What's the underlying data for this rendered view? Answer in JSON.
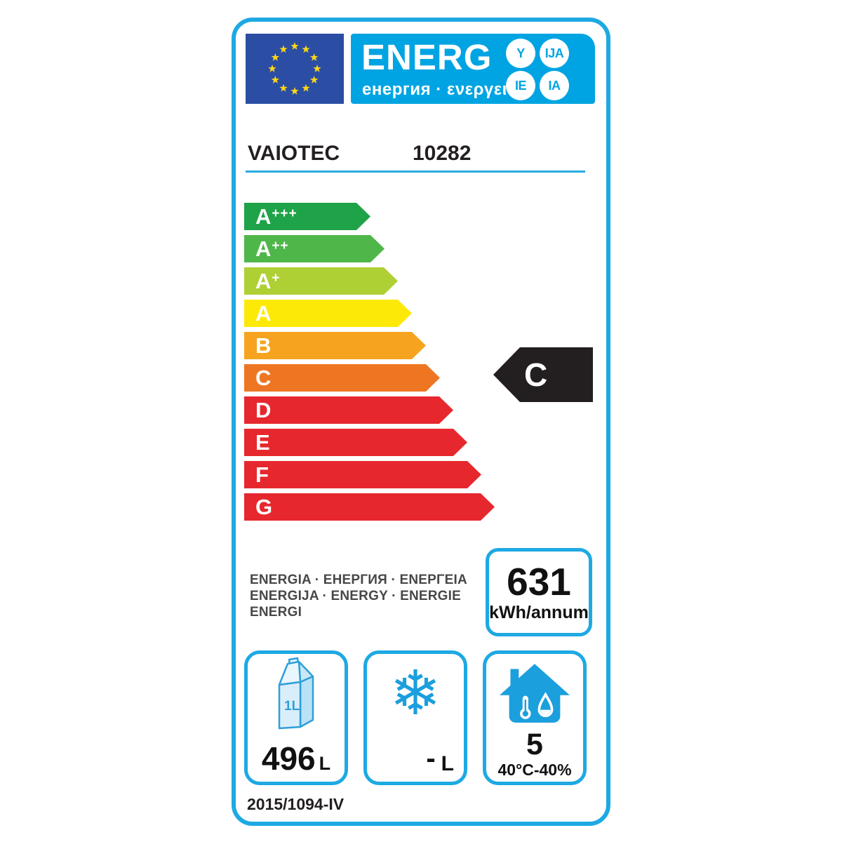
{
  "label": {
    "header": {
      "title": "ENERG",
      "subtitle": "енергия · ενεργεια",
      "suffixes": [
        "Y",
        "IJA",
        "IE",
        "IA"
      ]
    },
    "brand": "VAIOTEC",
    "model": "10282",
    "rating_scale": [
      {
        "grade": "A",
        "sup": "+++",
        "color": "#1fa348"
      },
      {
        "grade": "A",
        "sup": "++",
        "color": "#4fb749"
      },
      {
        "grade": "A",
        "sup": "+",
        "color": "#aed035"
      },
      {
        "grade": "A",
        "sup": "",
        "color": "#fde908"
      },
      {
        "grade": "B",
        "sup": "",
        "color": "#f6a41f"
      },
      {
        "grade": "C",
        "sup": "",
        "color": "#ee7623"
      },
      {
        "grade": "D",
        "sup": "",
        "color": "#e6282e"
      },
      {
        "grade": "E",
        "sup": "",
        "color": "#e6282e"
      },
      {
        "grade": "F",
        "sup": "",
        "color": "#e6282e"
      },
      {
        "grade": "G",
        "sup": "",
        "color": "#e6282e"
      }
    ],
    "current_rating": "C",
    "energy_words": [
      "ENERGIA · ЕНЕРГИЯ · ΕΝΕΡΓΕΙΑ",
      "ENERGIJA · ENERGY · ENERGIE",
      "ENERGI"
    ],
    "consumption": {
      "value": "631",
      "unit": "kWh/annum"
    },
    "fridge": {
      "icon_label": "1L",
      "value": "496",
      "unit": "L"
    },
    "freezer": {
      "value": "-",
      "unit": "L"
    },
    "climate": {
      "value": "5",
      "detail": "40°C-40%"
    },
    "regulation": "2015/1094-IV"
  },
  "icons": {
    "snowflake": "❄"
  },
  "colors": {
    "accent_blue": "#1ea9e3",
    "header_blue": "#00a4e2",
    "eu_flag_blue": "#2b4ea4",
    "star_yellow": "#ffd617",
    "pointer_black": "#231f20"
  }
}
